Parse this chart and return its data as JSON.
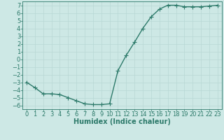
{
  "x": [
    0,
    1,
    2,
    3,
    4,
    5,
    6,
    7,
    8,
    9,
    10,
    11,
    12,
    13,
    14,
    15,
    16,
    17,
    18,
    19,
    20,
    21,
    22,
    23
  ],
  "y": [
    -3.0,
    -3.7,
    -4.5,
    -4.5,
    -4.6,
    -5.0,
    -5.4,
    -5.8,
    -5.9,
    -5.9,
    -5.8,
    -1.5,
    0.5,
    2.2,
    4.0,
    5.5,
    6.5,
    7.0,
    7.0,
    6.8,
    6.8,
    6.8,
    6.9,
    7.0
  ],
  "line_color": "#2d7a6a",
  "marker": "+",
  "marker_size": 4,
  "background_color": "#cde8e5",
  "grid_color": "#b8d8d4",
  "xlabel": "Humidex (Indice chaleur)",
  "xlim": [
    -0.5,
    23.5
  ],
  "ylim": [
    -6.5,
    7.5
  ],
  "yticks": [
    -6,
    -5,
    -4,
    -3,
    -2,
    -1,
    0,
    1,
    2,
    3,
    4,
    5,
    6,
    7
  ],
  "xticks": [
    0,
    1,
    2,
    3,
    4,
    5,
    6,
    7,
    8,
    9,
    10,
    11,
    12,
    13,
    14,
    15,
    16,
    17,
    18,
    19,
    20,
    21,
    22,
    23
  ],
  "tick_color": "#2d7a6a",
  "label_fontsize": 6,
  "xlabel_fontsize": 7,
  "line_width": 1.0,
  "marker_edge_width": 0.8
}
